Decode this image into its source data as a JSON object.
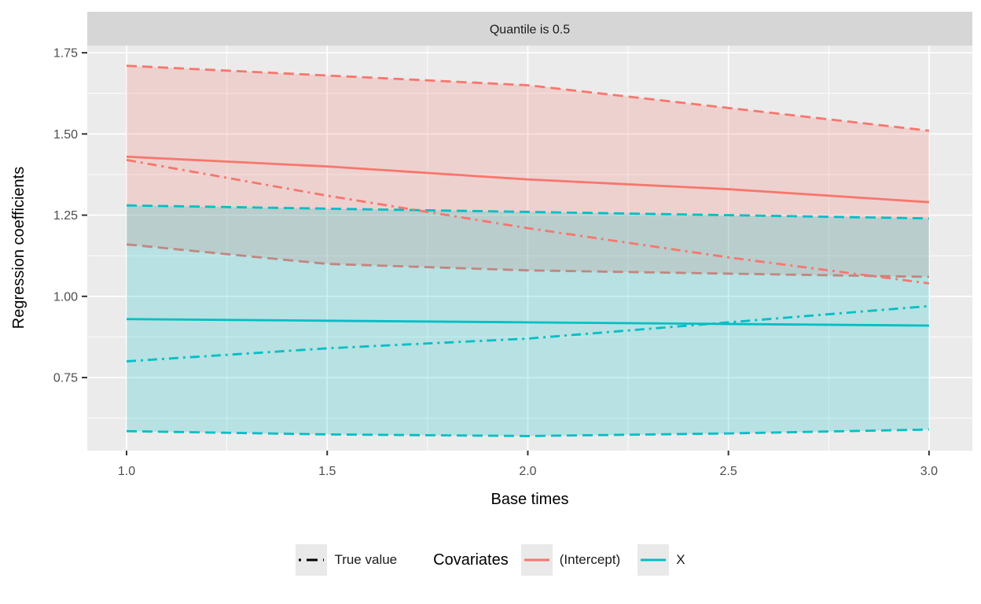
{
  "strip": {
    "label": "Quantile is 0.5"
  },
  "axes": {
    "x": {
      "title": "Base times",
      "ticks": [
        1.0,
        1.5,
        2.0,
        2.5,
        3.0
      ],
      "tick_labels": [
        "1.0",
        "1.5",
        "2.0",
        "2.5",
        "3.0"
      ],
      "minor_ticks": [
        1.25,
        1.75,
        2.25,
        2.75
      ]
    },
    "y": {
      "title": "Regression coefficients",
      "ticks": [
        0.75,
        1.0,
        1.25,
        1.5,
        1.75
      ],
      "tick_labels": [
        "0.75",
        "1.00",
        "1.25",
        "1.50",
        "1.75"
      ],
      "minor_ticks": [
        0.625,
        0.875,
        1.125,
        1.375,
        1.625
      ]
    }
  },
  "legend": {
    "true_value_label": "True value",
    "true_value_color": "#000000",
    "title": "Covariates",
    "items": [
      {
        "label": "(Intercept)"
      },
      {
        "label": "X"
      }
    ],
    "key_background": "#E9E9E9"
  },
  "colors": {
    "panel_background": "#EBEBEB",
    "strip_background": "#D6D6D6",
    "grid_major": "#FFFFFF",
    "grid_minor": "#FFFFFF",
    "axis_text": "#4D4D4D",
    "tick_mark": "#333333",
    "intercept": "#F8766D",
    "x_covariate": "#00BFC4",
    "ribbon_opacity": 0.22
  },
  "chart_data": {
    "type": "line",
    "title": "Quantile is 0.5",
    "xlabel": "Base times",
    "ylabel": "Regression coefficients",
    "x": [
      1.0,
      1.5,
      2.0,
      2.5,
      3.0
    ],
    "xlim": [
      0.902,
      3.108
    ],
    "ylim": [
      0.525,
      1.772
    ],
    "grid": "on",
    "legend_position": "bottom",
    "line_styles": {
      "estimate": "solid",
      "bounds": "dashed",
      "true_value": "dashdot"
    },
    "covariates": [
      {
        "name": "(Intercept)",
        "color": "#F8766D",
        "estimate": [
          1.43,
          1.4,
          1.36,
          1.33,
          1.29
        ],
        "upper": [
          1.71,
          1.68,
          1.65,
          1.58,
          1.51
        ],
        "lower": [
          1.16,
          1.1,
          1.08,
          1.07,
          1.06
        ],
        "true_value": [
          1.42,
          1.31,
          1.21,
          1.12,
          1.04
        ]
      },
      {
        "name": "X",
        "color": "#00BFC4",
        "estimate": [
          0.93,
          0.925,
          0.92,
          0.915,
          0.91
        ],
        "upper": [
          1.28,
          1.27,
          1.26,
          1.25,
          1.24
        ],
        "lower": [
          0.585,
          0.575,
          0.57,
          0.578,
          0.59
        ],
        "true_value": [
          0.8,
          0.84,
          0.87,
          0.92,
          0.97
        ]
      }
    ]
  }
}
